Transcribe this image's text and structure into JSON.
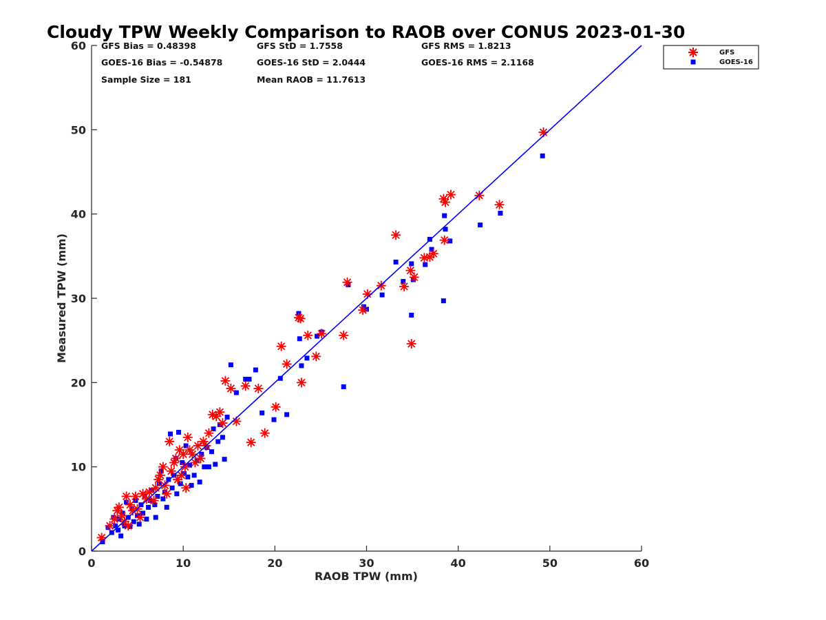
{
  "chart_data": {
    "type": "scatter",
    "title": "Cloudy TPW Weekly Comparison to RAOB over CONUS 2023-01-30",
    "xlabel": "RAOB TPW (mm)",
    "ylabel": "Measured TPW (mm)",
    "xlim": [
      0,
      60
    ],
    "ylim": [
      0,
      60
    ],
    "xticks": [
      0,
      10,
      20,
      30,
      40,
      50,
      60
    ],
    "yticks": [
      0,
      10,
      20,
      30,
      40,
      50,
      60
    ],
    "grid": false,
    "legend_position": "outside top-right",
    "stats": [
      [
        "GFS Bias = 0.48398",
        "GFS StD = 1.7558",
        "GFS RMS = 1.8213"
      ],
      [
        "GOES-16 Bias = -0.54878",
        "GOES-16 StD = 2.0444",
        "GOES-16 RMS = 2.1168"
      ],
      [
        "Sample Size = 181",
        "Mean RAOB = 11.7613",
        ""
      ]
    ],
    "reference_line": {
      "x": [
        0,
        60
      ],
      "y": [
        0,
        60
      ],
      "color": "#0000ff"
    },
    "series": [
      {
        "name": "GFS",
        "marker": "asterisk",
        "color": "#ff0000",
        "points": [
          [
            1.1,
            1.6
          ],
          [
            2.0,
            3.0
          ],
          [
            2.5,
            3.8
          ],
          [
            2.8,
            4.8
          ],
          [
            3.0,
            5.2
          ],
          [
            3.3,
            4.2
          ],
          [
            3.6,
            3.5
          ],
          [
            3.8,
            6.5
          ],
          [
            4.0,
            3.0
          ],
          [
            4.2,
            5.5
          ],
          [
            4.5,
            4.8
          ],
          [
            4.8,
            6.5
          ],
          [
            5.0,
            5.0
          ],
          [
            5.3,
            4.0
          ],
          [
            5.6,
            6.8
          ],
          [
            6.0,
            6.2
          ],
          [
            6.3,
            7.0
          ],
          [
            6.8,
            6.0
          ],
          [
            7.0,
            7.5
          ],
          [
            7.3,
            8.5
          ],
          [
            7.5,
            9.0
          ],
          [
            7.8,
            10.0
          ],
          [
            8.0,
            7.8
          ],
          [
            8.2,
            6.8
          ],
          [
            8.5,
            13.0
          ],
          [
            8.7,
            9.5
          ],
          [
            9.0,
            10.5
          ],
          [
            9.2,
            11.0
          ],
          [
            9.4,
            8.5
          ],
          [
            9.6,
            12.0
          ],
          [
            9.8,
            9.0
          ],
          [
            10.0,
            11.5
          ],
          [
            10.2,
            10.0
          ],
          [
            10.3,
            7.5
          ],
          [
            10.5,
            13.5
          ],
          [
            10.7,
            12.0
          ],
          [
            11.0,
            11.5
          ],
          [
            11.3,
            10.5
          ],
          [
            11.6,
            12.5
          ],
          [
            11.9,
            11.0
          ],
          [
            12.2,
            13.0
          ],
          [
            12.5,
            12.5
          ],
          [
            12.8,
            14.0
          ],
          [
            13.2,
            16.2
          ],
          [
            13.6,
            16.0
          ],
          [
            14.0,
            16.5
          ],
          [
            14.3,
            15.2
          ],
          [
            14.6,
            20.2
          ],
          [
            15.2,
            19.3
          ],
          [
            15.8,
            15.4
          ],
          [
            16.8,
            19.6
          ],
          [
            17.4,
            12.9
          ],
          [
            18.2,
            19.3
          ],
          [
            18.9,
            14.0
          ],
          [
            20.1,
            17.1
          ],
          [
            20.7,
            24.3
          ],
          [
            21.3,
            22.2
          ],
          [
            22.6,
            27.7
          ],
          [
            22.8,
            27.6
          ],
          [
            22.9,
            20.0
          ],
          [
            23.6,
            25.6
          ],
          [
            24.5,
            23.1
          ],
          [
            25.1,
            25.8
          ],
          [
            27.5,
            25.6
          ],
          [
            27.9,
            31.9
          ],
          [
            29.6,
            28.6
          ],
          [
            30.1,
            30.5
          ],
          [
            31.6,
            31.5
          ],
          [
            33.2,
            37.5
          ],
          [
            34.1,
            31.4
          ],
          [
            34.8,
            33.3
          ],
          [
            34.9,
            24.6
          ],
          [
            35.2,
            32.5
          ],
          [
            36.3,
            34.8
          ],
          [
            36.9,
            34.9
          ],
          [
            37.3,
            35.3
          ],
          [
            38.4,
            41.8
          ],
          [
            38.6,
            41.4
          ],
          [
            38.5,
            36.9
          ],
          [
            39.2,
            42.3
          ],
          [
            42.3,
            42.2
          ],
          [
            44.5,
            41.1
          ],
          [
            49.3,
            49.7
          ]
        ]
      },
      {
        "name": "GOES-16",
        "marker": "square",
        "color": "#0000ff",
        "points": [
          [
            1.2,
            1.1
          ],
          [
            1.8,
            2.8
          ],
          [
            2.2,
            2.2
          ],
          [
            2.4,
            4.0
          ],
          [
            2.6,
            3.0
          ],
          [
            2.9,
            2.5
          ],
          [
            3.0,
            3.8
          ],
          [
            3.2,
            1.8
          ],
          [
            3.4,
            4.5
          ],
          [
            3.6,
            3.0
          ],
          [
            3.8,
            5.8
          ],
          [
            4.0,
            4.0
          ],
          [
            4.2,
            2.9
          ],
          [
            4.4,
            5.0
          ],
          [
            4.6,
            3.5
          ],
          [
            4.8,
            6.0
          ],
          [
            5.0,
            4.2
          ],
          [
            5.2,
            3.2
          ],
          [
            5.4,
            5.5
          ],
          [
            5.6,
            4.5
          ],
          [
            5.8,
            6.6
          ],
          [
            6.0,
            3.8
          ],
          [
            6.2,
            5.2
          ],
          [
            6.4,
            6.0
          ],
          [
            6.6,
            7.2
          ],
          [
            6.9,
            5.5
          ],
          [
            7.0,
            4.0
          ],
          [
            7.2,
            6.5
          ],
          [
            7.4,
            8.0
          ],
          [
            7.6,
            9.5
          ],
          [
            7.8,
            6.2
          ],
          [
            8.0,
            7.0
          ],
          [
            8.2,
            5.2
          ],
          [
            8.4,
            8.5
          ],
          [
            8.6,
            13.9
          ],
          [
            8.8,
            7.5
          ],
          [
            9.0,
            9.0
          ],
          [
            9.2,
            11.0
          ],
          [
            9.3,
            6.8
          ],
          [
            9.5,
            14.1
          ],
          [
            9.7,
            8.0
          ],
          [
            9.9,
            10.5
          ],
          [
            10.1,
            9.2
          ],
          [
            10.3,
            12.5
          ],
          [
            10.5,
            8.8
          ],
          [
            10.7,
            10.2
          ],
          [
            10.9,
            7.8
          ],
          [
            11.2,
            9.0
          ],
          [
            11.5,
            10.8
          ],
          [
            11.8,
            8.2
          ],
          [
            12.0,
            11.5
          ],
          [
            12.3,
            10.0
          ],
          [
            12.6,
            12.3
          ],
          [
            12.8,
            10.0
          ],
          [
            13.1,
            11.8
          ],
          [
            13.3,
            14.5
          ],
          [
            13.5,
            10.3
          ],
          [
            13.8,
            13.0
          ],
          [
            14.0,
            15.0
          ],
          [
            14.3,
            13.5
          ],
          [
            14.5,
            10.9
          ],
          [
            14.8,
            15.9
          ],
          [
            15.2,
            22.1
          ],
          [
            15.8,
            18.8
          ],
          [
            16.8,
            20.4
          ],
          [
            17.2,
            20.4
          ],
          [
            17.9,
            21.5
          ],
          [
            18.6,
            16.4
          ],
          [
            19.9,
            15.6
          ],
          [
            20.6,
            20.5
          ],
          [
            21.3,
            16.2
          ],
          [
            22.6,
            28.2
          ],
          [
            22.7,
            25.2
          ],
          [
            22.9,
            22.0
          ],
          [
            23.5,
            22.9
          ],
          [
            24.6,
            25.5
          ],
          [
            25.1,
            26.0
          ],
          [
            27.5,
            19.5
          ],
          [
            28.0,
            31.6
          ],
          [
            29.7,
            29.0
          ],
          [
            30.0,
            28.7
          ],
          [
            31.7,
            30.4
          ],
          [
            33.2,
            34.3
          ],
          [
            34.0,
            32.0
          ],
          [
            34.9,
            34.1
          ],
          [
            34.9,
            28.0
          ],
          [
            35.1,
            32.2
          ],
          [
            36.4,
            34.0
          ],
          [
            36.9,
            37.0
          ],
          [
            37.1,
            35.8
          ],
          [
            38.4,
            29.7
          ],
          [
            38.5,
            39.8
          ],
          [
            38.6,
            38.2
          ],
          [
            39.1,
            36.8
          ],
          [
            42.4,
            38.7
          ],
          [
            44.6,
            40.1
          ],
          [
            49.2,
            46.9
          ]
        ]
      }
    ]
  }
}
